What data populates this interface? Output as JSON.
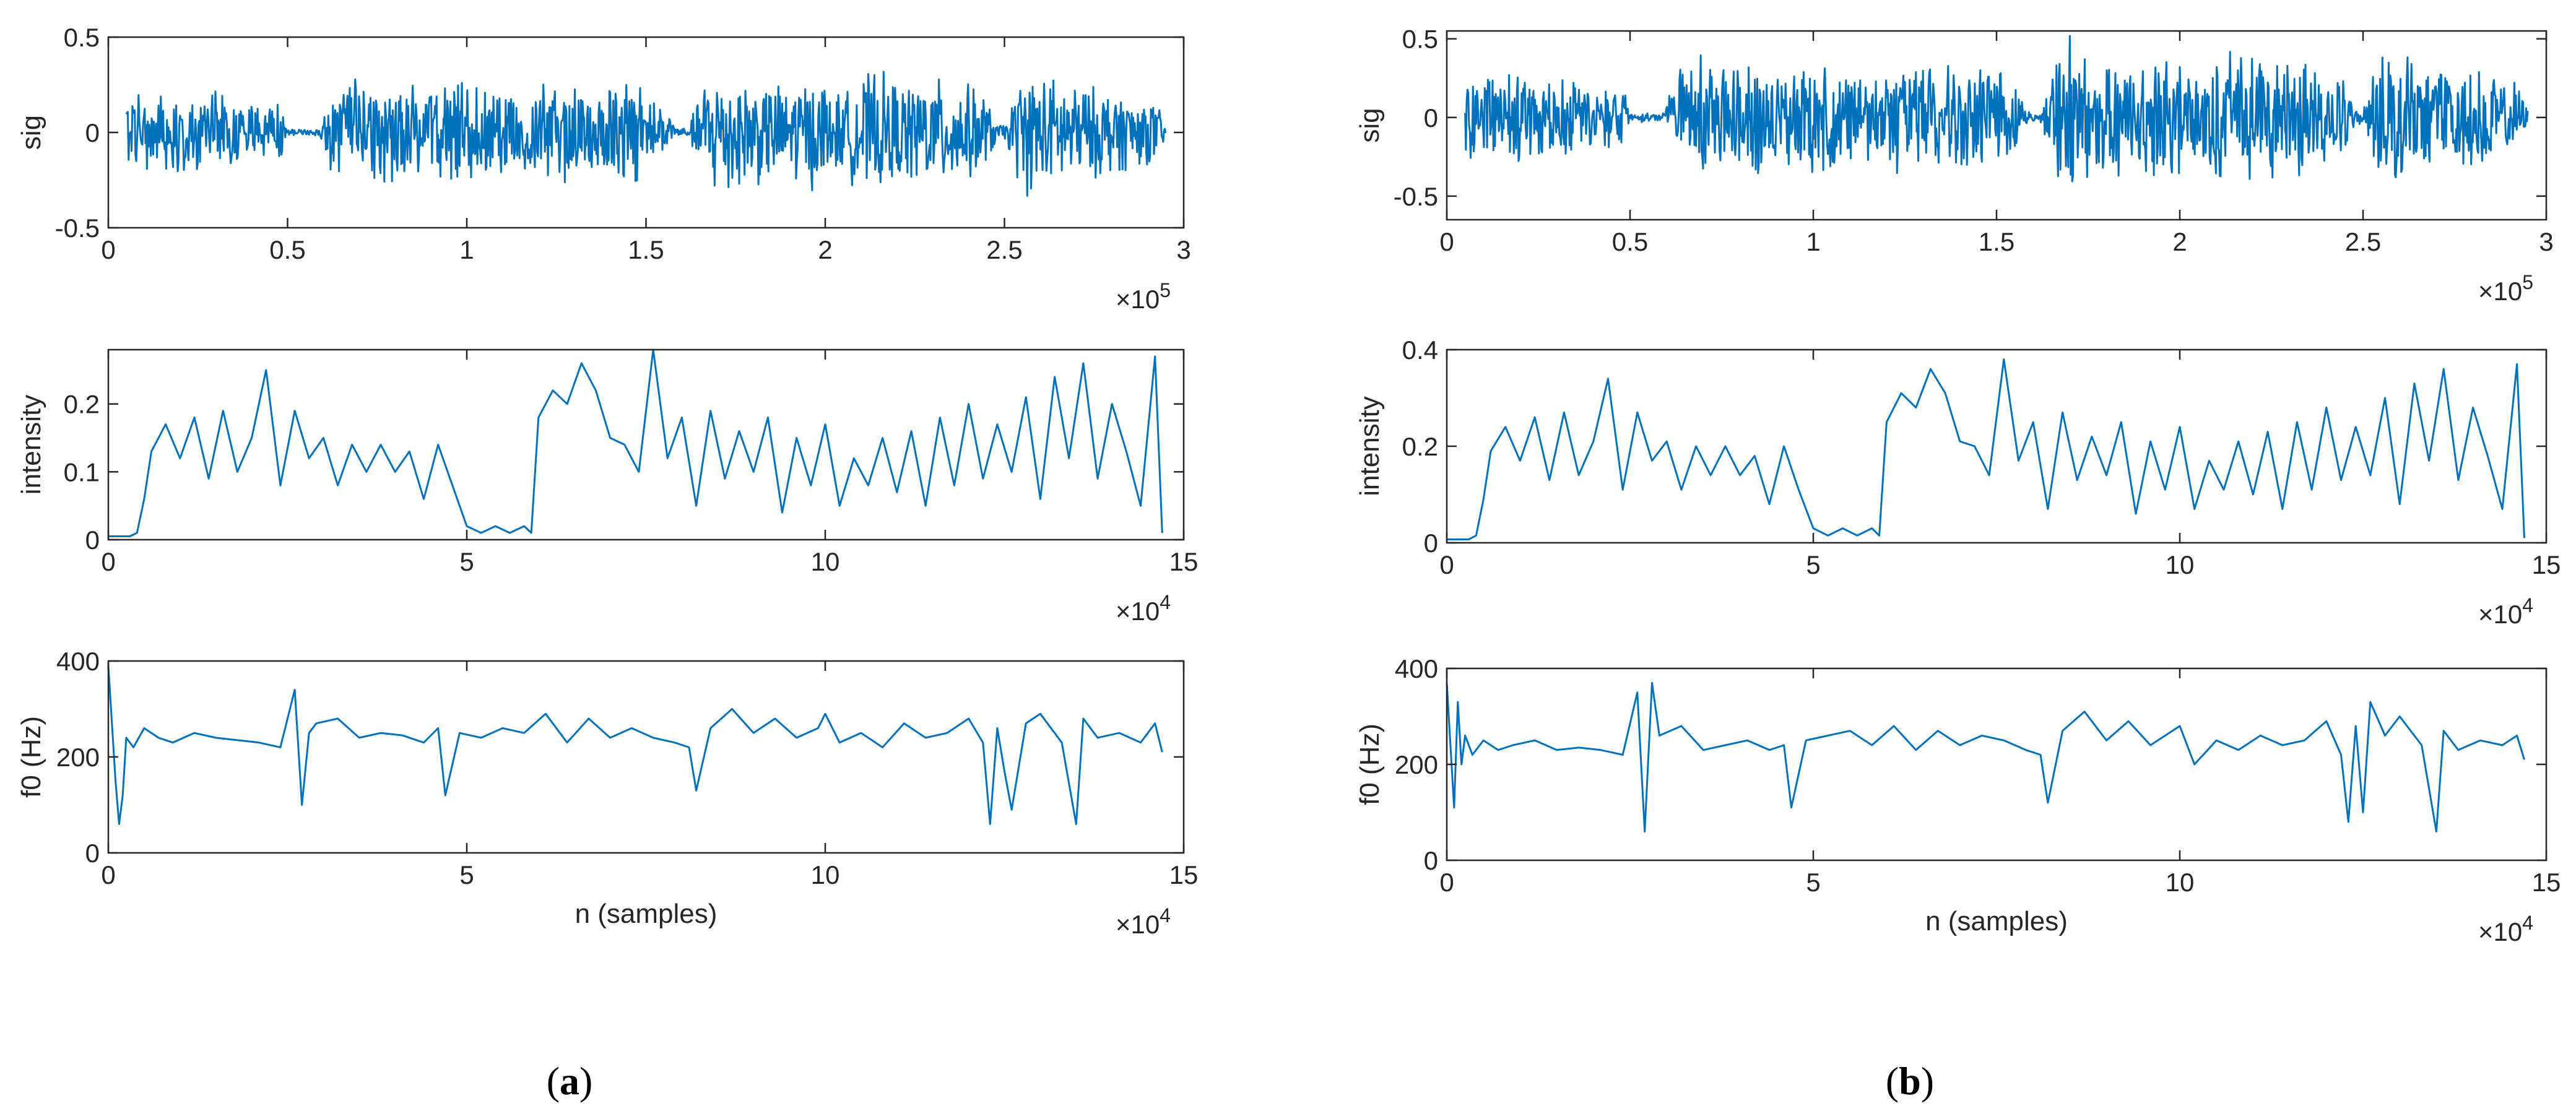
{
  "panel_labels": {
    "a": "a",
    "b": "b"
  },
  "colors": {
    "line": "#0072BD",
    "axis": "#262626",
    "background": "#ffffff"
  },
  "chart_data": [
    {
      "panel": "a",
      "type": "line",
      "ylabel": "sig",
      "xlabel": "",
      "xlim": [
        0,
        3
      ],
      "ylim": [
        -0.5,
        0.5
      ],
      "xticks": [
        0,
        0.5,
        1,
        1.5,
        2,
        2.5,
        3
      ],
      "xtick_labels": [
        "0",
        "0.5",
        "1",
        "1.5",
        "2",
        "2.5",
        "3"
      ],
      "yticks": [
        -0.5,
        0,
        0.5
      ],
      "ytick_labels": [
        "-0.5",
        "0",
        "0.5"
      ],
      "x_multiplier": "×10",
      "x_multiplier_exp": "5",
      "series": [
        {
          "kind": "waveform",
          "envelope_x": [
            0.05,
            0.08,
            0.13,
            0.18,
            0.24,
            0.3,
            0.36,
            0.42,
            0.48,
            0.5,
            0.55,
            0.59,
            0.63,
            0.68,
            0.72,
            0.77,
            0.83,
            0.88,
            0.93,
            1.0,
            1.08,
            1.15,
            1.22,
            1.3,
            1.38,
            1.45,
            1.52,
            1.58,
            1.62,
            1.65,
            1.7,
            1.76,
            1.82,
            1.88,
            1.94,
            2.0,
            2.05,
            2.08,
            2.13,
            2.18,
            2.22,
            2.27,
            2.32,
            2.38,
            2.44,
            2.48,
            2.5,
            2.55,
            2.61,
            2.67,
            2.73,
            2.8,
            2.86,
            2.92,
            2.95
          ],
          "envelope_y": [
            0.2,
            0.25,
            0.2,
            0.24,
            0.2,
            0.22,
            0.2,
            0.16,
            0.16,
            0.02,
            0.02,
            0.02,
            0.26,
            0.3,
            0.32,
            0.28,
            0.3,
            0.25,
            0.26,
            0.28,
            0.28,
            0.22,
            0.3,
            0.27,
            0.28,
            0.3,
            0.25,
            0.04,
            0.02,
            0.25,
            0.4,
            0.32,
            0.3,
            0.26,
            0.32,
            0.3,
            0.2,
            0.3,
            0.34,
            0.32,
            0.27,
            0.32,
            0.3,
            0.28,
            0.24,
            0.05,
            0.04,
            0.36,
            0.32,
            0.3,
            0.26,
            0.25,
            0.2,
            0.18,
            0.05
          ]
        }
      ]
    },
    {
      "panel": "a",
      "type": "line",
      "ylabel": "intensity",
      "xlabel": "",
      "xlim": [
        0,
        15
      ],
      "ylim": [
        0,
        0.28
      ],
      "xticks": [
        0,
        5,
        10,
        15
      ],
      "xtick_labels": [
        "0",
        "5",
        "10",
        "15"
      ],
      "yticks": [
        0,
        0.1,
        0.2
      ],
      "ytick_labels": [
        "0",
        "0.1",
        "0.2"
      ],
      "x_multiplier": "×10",
      "x_multiplier_exp": "4",
      "series": [
        {
          "x": [
            0,
            0.3,
            0.4,
            0.5,
            0.6,
            0.8,
            1,
            1.2,
            1.4,
            1.6,
            1.8,
            2,
            2.2,
            2.4,
            2.6,
            2.8,
            3,
            3.2,
            3.4,
            3.6,
            3.8,
            4,
            4.2,
            4.4,
            4.6,
            4.8,
            5,
            5.2,
            5.4,
            5.6,
            5.8,
            5.9,
            6,
            6.2,
            6.4,
            6.6,
            6.8,
            7,
            7.2,
            7.4,
            7.6,
            7.8,
            8,
            8.2,
            8.4,
            8.6,
            8.8,
            9,
            9.2,
            9.4,
            9.6,
            9.8,
            10,
            10.2,
            10.4,
            10.6,
            10.8,
            11,
            11.2,
            11.4,
            11.6,
            11.8,
            12,
            12.2,
            12.4,
            12.6,
            12.8,
            13,
            13.2,
            13.4,
            13.6,
            13.8,
            14,
            14.2,
            14.4,
            14.6,
            14.7
          ],
          "y": [
            0.005,
            0.005,
            0.01,
            0.06,
            0.13,
            0.17,
            0.12,
            0.18,
            0.09,
            0.19,
            0.1,
            0.15,
            0.25,
            0.08,
            0.19,
            0.12,
            0.15,
            0.08,
            0.14,
            0.1,
            0.14,
            0.1,
            0.13,
            0.06,
            0.14,
            0.08,
            0.02,
            0.01,
            0.02,
            0.01,
            0.02,
            0.01,
            0.18,
            0.22,
            0.2,
            0.26,
            0.22,
            0.15,
            0.14,
            0.1,
            0.28,
            0.12,
            0.18,
            0.05,
            0.19,
            0.09,
            0.16,
            0.1,
            0.18,
            0.04,
            0.15,
            0.08,
            0.17,
            0.05,
            0.12,
            0.08,
            0.15,
            0.07,
            0.16,
            0.05,
            0.18,
            0.08,
            0.2,
            0.09,
            0.17,
            0.1,
            0.21,
            0.06,
            0.24,
            0.12,
            0.26,
            0.09,
            0.2,
            0.13,
            0.05,
            0.27,
            0.01
          ]
        }
      ]
    },
    {
      "panel": "a",
      "type": "line",
      "ylabel": "f0 (Hz)",
      "xlabel": "n (samples)",
      "xlim": [
        0,
        15
      ],
      "ylim": [
        0,
        400
      ],
      "xticks": [
        0,
        5,
        10,
        15
      ],
      "xtick_labels": [
        "0",
        "5",
        "10",
        "15"
      ],
      "yticks": [
        0,
        200,
        400
      ],
      "ytick_labels": [
        "0",
        "200",
        "400"
      ],
      "x_multiplier": "×10",
      "x_multiplier_exp": "4",
      "series": [
        {
          "x": [
            0,
            0.1,
            0.15,
            0.2,
            0.25,
            0.35,
            0.5,
            0.7,
            0.9,
            1.2,
            1.5,
            1.8,
            2.1,
            2.4,
            2.6,
            2.7,
            2.8,
            2.9,
            3.2,
            3.5,
            3.8,
            4.1,
            4.4,
            4.6,
            4.7,
            4.9,
            5.2,
            5.5,
            5.8,
            6.1,
            6.4,
            6.7,
            7,
            7.3,
            7.6,
            7.9,
            8.1,
            8.2,
            8.4,
            8.7,
            9,
            9.3,
            9.6,
            9.9,
            10,
            10.2,
            10.5,
            10.8,
            11.1,
            11.4,
            11.7,
            12,
            12.2,
            12.3,
            12.4,
            12.5,
            12.6,
            12.8,
            13,
            13.3,
            13.5,
            13.6,
            13.8,
            14.1,
            14.4,
            14.6,
            14.7
          ],
          "y": [
            390,
            150,
            60,
            120,
            240,
            220,
            260,
            240,
            230,
            250,
            240,
            235,
            230,
            220,
            340,
            100,
            250,
            270,
            280,
            240,
            250,
            245,
            230,
            260,
            120,
            250,
            240,
            260,
            250,
            290,
            230,
            280,
            240,
            260,
            240,
            230,
            220,
            130,
            260,
            300,
            250,
            280,
            240,
            260,
            290,
            230,
            250,
            220,
            270,
            240,
            250,
            280,
            230,
            60,
            260,
            170,
            90,
            270,
            290,
            230,
            60,
            280,
            240,
            250,
            230,
            270,
            210
          ]
        }
      ]
    },
    {
      "panel": "b",
      "type": "line",
      "ylabel": "sig",
      "xlabel": "",
      "xlim": [
        0,
        3
      ],
      "ylim": [
        -0.65,
        0.55
      ],
      "xticks": [
        0,
        0.5,
        1,
        1.5,
        2,
        2.5,
        3
      ],
      "xtick_labels": [
        "0",
        "0.5",
        "1",
        "1.5",
        "2",
        "2.5",
        "3"
      ],
      "yticks": [
        -0.5,
        0,
        0.5
      ],
      "ytick_labels": [
        "-0.5",
        "0",
        "0.5"
      ],
      "x_multiplier": "×10",
      "x_multiplier_exp": "5",
      "series": [
        {
          "kind": "waveform",
          "envelope_x": [
            0.05,
            0.08,
            0.13,
            0.18,
            0.24,
            0.3,
            0.36,
            0.42,
            0.48,
            0.5,
            0.55,
            0.59,
            0.63,
            0.68,
            0.72,
            0.77,
            0.83,
            0.88,
            0.93,
            1.0,
            1.08,
            1.15,
            1.22,
            1.3,
            1.38,
            1.45,
            1.52,
            1.58,
            1.62,
            1.65,
            1.7,
            1.76,
            1.82,
            1.88,
            1.94,
            2.0,
            2.05,
            2.08,
            2.13,
            2.18,
            2.22,
            2.27,
            2.32,
            2.38,
            2.44,
            2.48,
            2.5,
            2.55,
            2.61,
            2.67,
            2.73,
            2.8,
            2.86,
            2.92,
            2.95
          ],
          "envelope_y": [
            0.28,
            0.33,
            0.28,
            0.32,
            0.28,
            0.3,
            0.28,
            0.22,
            0.22,
            0.03,
            0.03,
            0.03,
            0.35,
            0.4,
            0.42,
            0.38,
            0.4,
            0.34,
            0.35,
            0.37,
            0.37,
            0.3,
            0.4,
            0.36,
            0.37,
            0.4,
            0.34,
            0.05,
            0.03,
            0.33,
            0.55,
            0.43,
            0.4,
            0.35,
            0.43,
            0.4,
            0.27,
            0.4,
            0.46,
            0.43,
            0.36,
            0.43,
            0.4,
            0.37,
            0.32,
            0.06,
            0.05,
            0.48,
            0.43,
            0.4,
            0.35,
            0.33,
            0.27,
            0.24,
            0.06
          ]
        }
      ]
    },
    {
      "panel": "b",
      "type": "line",
      "ylabel": "intensity",
      "xlabel": "",
      "xlim": [
        0,
        15
      ],
      "ylim": [
        0,
        0.4
      ],
      "xticks": [
        0,
        5,
        10,
        15
      ],
      "xtick_labels": [
        "0",
        "5",
        "10",
        "15"
      ],
      "yticks": [
        0,
        0.2,
        0.4
      ],
      "ytick_labels": [
        "0",
        "0.2",
        "0.4"
      ],
      "x_multiplier": "×10",
      "x_multiplier_exp": "4",
      "series": [
        {
          "x": [
            0,
            0.3,
            0.4,
            0.5,
            0.6,
            0.8,
            1,
            1.2,
            1.4,
            1.6,
            1.8,
            2,
            2.2,
            2.4,
            2.6,
            2.8,
            3,
            3.2,
            3.4,
            3.6,
            3.8,
            4,
            4.2,
            4.4,
            4.6,
            4.8,
            5,
            5.2,
            5.4,
            5.6,
            5.8,
            5.9,
            6,
            6.2,
            6.4,
            6.6,
            6.8,
            7,
            7.2,
            7.4,
            7.6,
            7.8,
            8,
            8.2,
            8.4,
            8.6,
            8.8,
            9,
            9.2,
            9.4,
            9.6,
            9.8,
            10,
            10.2,
            10.4,
            10.6,
            10.8,
            11,
            11.2,
            11.4,
            11.6,
            11.8,
            12,
            12.2,
            12.4,
            12.6,
            12.8,
            13,
            13.2,
            13.4,
            13.6,
            13.8,
            14,
            14.2,
            14.4,
            14.6,
            14.7
          ],
          "y": [
            0.007,
            0.007,
            0.015,
            0.09,
            0.19,
            0.24,
            0.17,
            0.26,
            0.13,
            0.27,
            0.14,
            0.21,
            0.34,
            0.11,
            0.27,
            0.17,
            0.21,
            0.11,
            0.2,
            0.14,
            0.2,
            0.14,
            0.18,
            0.08,
            0.2,
            0.11,
            0.03,
            0.015,
            0.03,
            0.015,
            0.03,
            0.015,
            0.25,
            0.31,
            0.28,
            0.36,
            0.31,
            0.21,
            0.2,
            0.14,
            0.38,
            0.17,
            0.25,
            0.07,
            0.27,
            0.13,
            0.22,
            0.14,
            0.25,
            0.06,
            0.21,
            0.11,
            0.24,
            0.07,
            0.17,
            0.11,
            0.21,
            0.1,
            0.23,
            0.07,
            0.25,
            0.11,
            0.28,
            0.13,
            0.24,
            0.14,
            0.3,
            0.08,
            0.33,
            0.17,
            0.36,
            0.13,
            0.28,
            0.18,
            0.07,
            0.37,
            0.01
          ]
        }
      ]
    },
    {
      "panel": "b",
      "type": "line",
      "ylabel": "f0 (Hz)",
      "xlabel": "n (samples)",
      "xlim": [
        0,
        15
      ],
      "ylim": [
        0,
        400
      ],
      "xticks": [
        0,
        5,
        10,
        15
      ],
      "xtick_labels": [
        "0",
        "5",
        "10",
        "15"
      ],
      "yticks": [
        0,
        200,
        400
      ],
      "ytick_labels": [
        "0",
        "200",
        "400"
      ],
      "x_multiplier": "×10",
      "x_multiplier_exp": "4",
      "series": [
        {
          "x": [
            0,
            0.1,
            0.15,
            0.2,
            0.25,
            0.35,
            0.5,
            0.7,
            0.9,
            1.2,
            1.5,
            1.8,
            2.1,
            2.4,
            2.6,
            2.7,
            2.8,
            2.9,
            3.2,
            3.5,
            3.8,
            4.1,
            4.4,
            4.6,
            4.7,
            4.9,
            5.2,
            5.5,
            5.8,
            6.1,
            6.4,
            6.7,
            7,
            7.3,
            7.6,
            7.9,
            8.1,
            8.2,
            8.4,
            8.7,
            9,
            9.3,
            9.6,
            9.9,
            10,
            10.2,
            10.5,
            10.8,
            11.1,
            11.4,
            11.7,
            12,
            12.2,
            12.3,
            12.4,
            12.5,
            12.6,
            12.8,
            13,
            13.3,
            13.5,
            13.6,
            13.8,
            14.1,
            14.4,
            14.6,
            14.7
          ],
          "y": [
            370,
            110,
            330,
            200,
            260,
            220,
            250,
            230,
            240,
            250,
            230,
            235,
            230,
            220,
            350,
            60,
            370,
            260,
            280,
            230,
            240,
            250,
            230,
            240,
            110,
            250,
            260,
            270,
            240,
            280,
            230,
            270,
            240,
            260,
            250,
            230,
            220,
            120,
            270,
            310,
            250,
            290,
            240,
            270,
            280,
            200,
            250,
            230,
            260,
            240,
            250,
            290,
            220,
            80,
            280,
            100,
            330,
            260,
            300,
            240,
            60,
            270,
            230,
            250,
            240,
            260,
            210
          ]
        }
      ]
    }
  ]
}
